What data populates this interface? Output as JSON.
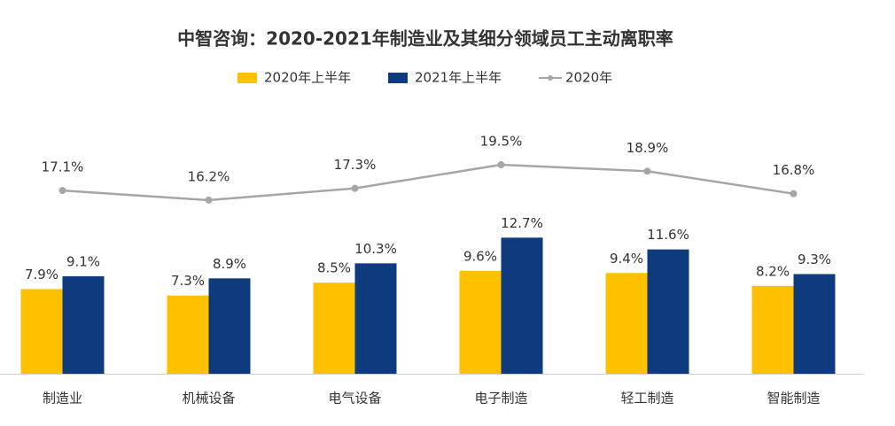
{
  "chart_data": {
    "type": "bar",
    "title": "中智咨询：2020-2021年制造业及其细分领域员工主动离职率",
    "categories": [
      "制造业",
      "机械设备",
      "电气设备",
      "电子制造",
      "轻工制造",
      "智能制造"
    ],
    "series": [
      {
        "name": "2020年上半年",
        "color": "#FFC000",
        "type": "bar",
        "values": [
          7.9,
          7.3,
          8.5,
          9.6,
          9.4,
          8.2
        ],
        "value_labels": [
          "7.9%",
          "7.3%",
          "8.5%",
          "9.6%",
          "9.4%",
          "8.2%"
        ]
      },
      {
        "name": "2021年上半年",
        "color": "#0E3A7E",
        "type": "bar",
        "values": [
          9.1,
          8.9,
          10.3,
          12.7,
          11.6,
          9.3
        ],
        "value_labels": [
          "9.1%",
          "8.9%",
          "10.3%",
          "12.7%",
          "11.6%",
          "9.3%"
        ]
      },
      {
        "name": "2020年",
        "color": "#A6A6A6",
        "type": "line",
        "values": [
          17.1,
          16.2,
          17.3,
          19.5,
          18.9,
          16.8
        ],
        "value_labels": [
          "17.1%",
          "16.2%",
          "17.3%",
          "19.5%",
          "18.9%",
          "16.8%"
        ]
      }
    ]
  }
}
